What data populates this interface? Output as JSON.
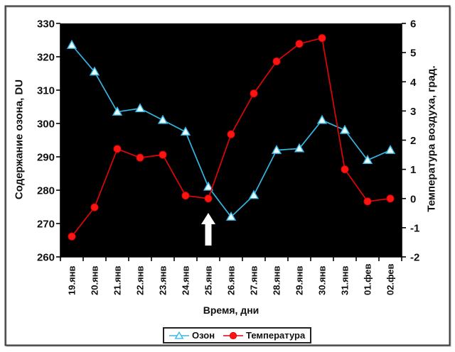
{
  "figure": {
    "background": "#ffffff",
    "border_color": "#3c3c3c",
    "border_shadow_color": "#a8a8a8"
  },
  "chart_data": {
    "type": "line",
    "plot_background": "#000000",
    "grid": "off",
    "categories": [
      "19.янв",
      "20.янв",
      "21.янв",
      "22.янв",
      "23.янв",
      "24.янв",
      "25.янв",
      "26.янв",
      "27.янв",
      "28.янв",
      "29.янв",
      "30.янв",
      "31.янв",
      "01.фев",
      "02.фев"
    ],
    "series": [
      {
        "name": "Озон",
        "axis": "left",
        "marker": "triangle",
        "color": "#35B6E2",
        "marker_fill": "#EAFDFF",
        "values": [
          323.5,
          315.5,
          303.5,
          304.5,
          301,
          297.5,
          281,
          272,
          278.5,
          292,
          292.5,
          301,
          298,
          289,
          292
        ]
      },
      {
        "name": "Температура",
        "axis": "right",
        "marker": "circle",
        "color": "#DE0505",
        "marker_fill": "#FF1414",
        "values": [
          -1.3,
          -0.3,
          1.7,
          1.4,
          1.5,
          0.1,
          0.0,
          2.2,
          3.6,
          4.7,
          5.3,
          5.5,
          1.0,
          -0.1,
          0.0
        ]
      }
    ],
    "left_axis": {
      "label": "Содержание озона, DU",
      "min": 260,
      "max": 330,
      "tick_step": 10
    },
    "right_axis": {
      "label": "Температура воздуха, град.",
      "min": -2,
      "max": 6,
      "tick_step": 1
    },
    "x_axis": {
      "label": "Время, дни"
    },
    "legend": {
      "position": "bottom"
    },
    "annotation": {
      "type": "up-arrow",
      "color": "#FFFFFF",
      "at_category": "25.янв"
    }
  }
}
